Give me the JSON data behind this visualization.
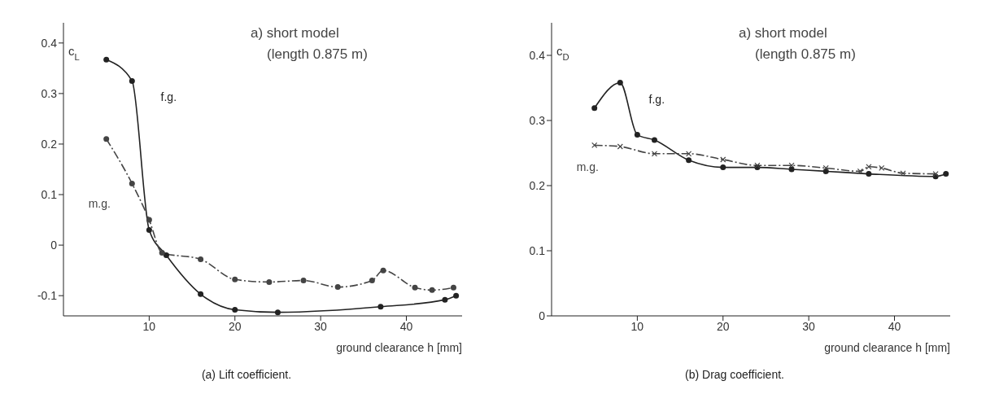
{
  "chart_data": [
    {
      "type": "line",
      "title": "(a)  Lift coefficient.",
      "xlabel": "ground clearance h [mm]",
      "ylabel": "c$_{L}$",
      "annotations": [
        "a) short model",
        "(length 0.875 m)"
      ],
      "xlim": [
        0,
        46.5
      ],
      "xticks": [
        10,
        20,
        30,
        40
      ],
      "ylim": [
        -0.14,
        0.44
      ],
      "yticks": [
        -0.1,
        0,
        0.1,
        0.2,
        0.3,
        0.4
      ],
      "series": [
        {
          "name": "f.g.",
          "color": "#222222",
          "marker": "circle",
          "line_style": "solid",
          "x": [
            5,
            8,
            10,
            12,
            16,
            20,
            25,
            37,
            44.5,
            45.8
          ],
          "values": [
            0.367,
            0.325,
            0.03,
            -0.02,
            -0.097,
            -0.128,
            -0.133,
            -0.122,
            -0.108,
            -0.1
          ]
        },
        {
          "name": "m.g.",
          "color": "#444444",
          "marker": "circle",
          "line_style": "dashed",
          "x": [
            5,
            8,
            10,
            11.5,
            16,
            20,
            24,
            28,
            32,
            36,
            37.3,
            41,
            43,
            45.5
          ],
          "values": [
            0.21,
            0.122,
            0.05,
            -0.015,
            -0.028,
            -0.068,
            -0.073,
            -0.07,
            -0.083,
            -0.07,
            -0.05,
            -0.084,
            -0.089,
            -0.084
          ]
        }
      ]
    },
    {
      "type": "line",
      "title": "(b)  Drag coefficient.",
      "xlabel": "ground clearance h [mm]",
      "ylabel": "c$_{D}$",
      "annotations": [
        "a) short model",
        "(length 0.875 m)"
      ],
      "xlim": [
        0,
        46.5
      ],
      "xticks": [
        10,
        20,
        30,
        40
      ],
      "ylim": [
        0,
        0.45
      ],
      "yticks": [
        0,
        0.1,
        0.2,
        0.3,
        0.4
      ],
      "series": [
        {
          "name": "f.g.",
          "color": "#222222",
          "marker": "circle",
          "line_style": "solid",
          "x": [
            5,
            8,
            10,
            12,
            16,
            20,
            24,
            28,
            32,
            37,
            41,
            44.8,
            46
          ],
          "values": [
            0.319,
            0.358,
            0.278,
            0.27,
            0.239,
            0.228,
            0.228,
            0.225,
            0.222,
            0.218,
            null,
            0.214,
            0.218
          ]
        },
        {
          "name": "m.g.",
          "color": "#444444",
          "marker": "cross",
          "line_style": "dashed",
          "x": [
            5,
            8,
            12,
            16,
            20,
            24,
            28,
            32,
            36,
            37,
            38.5,
            41,
            44.8
          ],
          "values": [
            0.262,
            0.26,
            0.249,
            0.249,
            0.24,
            0.231,
            0.231,
            0.227,
            0.222,
            0.229,
            0.227,
            0.219,
            0.218
          ]
        }
      ]
    }
  ]
}
